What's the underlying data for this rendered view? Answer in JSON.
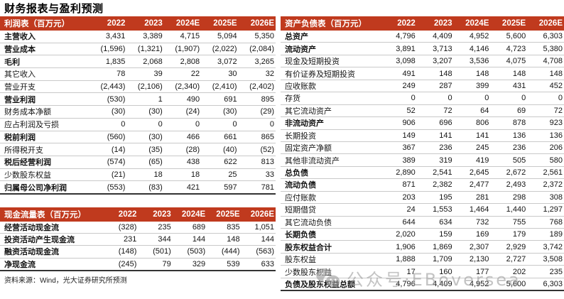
{
  "page_title": "财务报表与盈利预测",
  "colors": {
    "accent": "#C03A1E",
    "watermark_grey": "#A0A0A0"
  },
  "years": [
    "2022",
    "2023",
    "2024E",
    "2025E",
    "2026E"
  ],
  "tables": {
    "income": {
      "title": "利润表（百万元）",
      "rows": [
        {
          "label": "主营收入",
          "bold": true,
          "values": [
            "3,431",
            "3,389",
            "4,715",
            "5,094",
            "5,350"
          ]
        },
        {
          "label": "营业成本",
          "bold": true,
          "values": [
            "(1,596)",
            "(1,321)",
            "(1,907)",
            "(2,022)",
            "(2,084)"
          ]
        },
        {
          "label": "毛利",
          "bold": true,
          "values": [
            "1,835",
            "2,068",
            "2,808",
            "3,072",
            "3,265"
          ]
        },
        {
          "label": "其它收入",
          "bold": false,
          "values": [
            "78",
            "39",
            "22",
            "30",
            "32"
          ]
        },
        {
          "label": "营业开支",
          "bold": false,
          "values": [
            "(2,443)",
            "(2,106)",
            "(2,340)",
            "(2,410)",
            "(2,402)"
          ]
        },
        {
          "label": "营业利润",
          "bold": true,
          "values": [
            "(530)",
            "1",
            "490",
            "691",
            "895"
          ]
        },
        {
          "label": "财务成本净额",
          "bold": false,
          "values": [
            "(30)",
            "(30)",
            "(24)",
            "(30)",
            "(29)"
          ]
        },
        {
          "label": "应占利润及亏损",
          "bold": false,
          "values": [
            "0",
            "0",
            "0",
            "0",
            "0"
          ]
        },
        {
          "label": "税前利润",
          "bold": true,
          "values": [
            "(560)",
            "(30)",
            "466",
            "661",
            "865"
          ]
        },
        {
          "label": "所得税开支",
          "bold": false,
          "values": [
            "(14)",
            "(35)",
            "(28)",
            "(40)",
            "(52)"
          ]
        },
        {
          "label": "税后经营利润",
          "bold": true,
          "values": [
            "(574)",
            "(65)",
            "438",
            "622",
            "813"
          ]
        },
        {
          "label": "少数股东权益",
          "bold": false,
          "values": [
            "(21)",
            "18",
            "18",
            "25",
            "33"
          ]
        },
        {
          "label": "归属母公司净利润",
          "bold": true,
          "values": [
            "(553)",
            "(83)",
            "421",
            "597",
            "781"
          ]
        }
      ]
    },
    "cashflow": {
      "title": "现金流量表（百万元）",
      "rows": [
        {
          "label": "经营活动现金流",
          "bold": true,
          "values": [
            "(328)",
            "235",
            "689",
            "835",
            "1,051"
          ]
        },
        {
          "label": "投资活动产生现金流",
          "bold": true,
          "values": [
            "231",
            "344",
            "144",
            "148",
            "144"
          ]
        },
        {
          "label": "融资活动现金流",
          "bold": true,
          "values": [
            "(148)",
            "(501)",
            "(503)",
            "(444)",
            "(563)"
          ]
        },
        {
          "label": "净现金流",
          "bold": true,
          "values": [
            "(245)",
            "79",
            "329",
            "539",
            "633"
          ]
        }
      ]
    },
    "balance": {
      "title": "资产负债表（百万元）",
      "rows": [
        {
          "label": "总资产",
          "bold": true,
          "values": [
            "4,796",
            "4,409",
            "4,952",
            "5,600",
            "6,303"
          ]
        },
        {
          "label": "流动资产",
          "bold": true,
          "values": [
            "3,891",
            "3,713",
            "4,146",
            "4,723",
            "5,380"
          ]
        },
        {
          "label": "现金及短期投资",
          "bold": false,
          "values": [
            "3,098",
            "3,207",
            "3,536",
            "4,075",
            "4,708"
          ]
        },
        {
          "label": "有价证券及短期投资",
          "bold": false,
          "values": [
            "491",
            "148",
            "148",
            "148",
            "148"
          ]
        },
        {
          "label": "应收账款",
          "bold": false,
          "values": [
            "249",
            "287",
            "399",
            "431",
            "452"
          ]
        },
        {
          "label": "存货",
          "bold": false,
          "values": [
            "0",
            "0",
            "0",
            "0",
            "0"
          ]
        },
        {
          "label": "其它流动资产",
          "bold": false,
          "values": [
            "52",
            "72",
            "64",
            "69",
            "72"
          ]
        },
        {
          "label": "非流动资产",
          "bold": true,
          "values": [
            "906",
            "696",
            "806",
            "878",
            "923"
          ]
        },
        {
          "label": "长期投资",
          "bold": false,
          "values": [
            "149",
            "141",
            "141",
            "136",
            "136"
          ]
        },
        {
          "label": "固定资产净额",
          "bold": false,
          "values": [
            "367",
            "236",
            "245",
            "236",
            "206"
          ]
        },
        {
          "label": "其他非流动资产",
          "bold": false,
          "values": [
            "389",
            "319",
            "419",
            "505",
            "580"
          ]
        },
        {
          "label": "总负债",
          "bold": true,
          "values": [
            "2,890",
            "2,541",
            "2,645",
            "2,672",
            "2,561"
          ]
        },
        {
          "label": "流动负债",
          "bold": true,
          "values": [
            "871",
            "2,382",
            "2,477",
            "2,493",
            "2,372"
          ]
        },
        {
          "label": "应付账款",
          "bold": false,
          "values": [
            "203",
            "195",
            "281",
            "298",
            "308"
          ]
        },
        {
          "label": "短期借贷",
          "bold": false,
          "values": [
            "24",
            "1,553",
            "1,464",
            "1,440",
            "1,297"
          ]
        },
        {
          "label": "其它流动负债",
          "bold": false,
          "values": [
            "644",
            "634",
            "732",
            "755",
            "768"
          ]
        },
        {
          "label": "长期负债",
          "bold": true,
          "values": [
            "2,020",
            "159",
            "169",
            "179",
            "189"
          ]
        },
        {
          "label": "股东权益合计",
          "bold": true,
          "values": [
            "1,906",
            "1,869",
            "2,307",
            "2,929",
            "3,742"
          ]
        },
        {
          "label": "股东权益",
          "bold": false,
          "values": [
            "1,888",
            "1,709",
            "2,130",
            "2,727",
            "3,508"
          ]
        },
        {
          "label": "少数股东权益",
          "bold": false,
          "values": [
            "17",
            "160",
            "177",
            "202",
            "235"
          ]
        },
        {
          "label": "负债及股东权益总额",
          "bold": true,
          "values": [
            "4,796",
            "4,409",
            "4,952",
            "5,600",
            "6,303"
          ]
        }
      ]
    }
  },
  "source_note": "资料来源：Wind，光大证券研究所预测",
  "watermark": {
    "icon": "wechat-icon",
    "text": "公众号·EBoversea"
  }
}
